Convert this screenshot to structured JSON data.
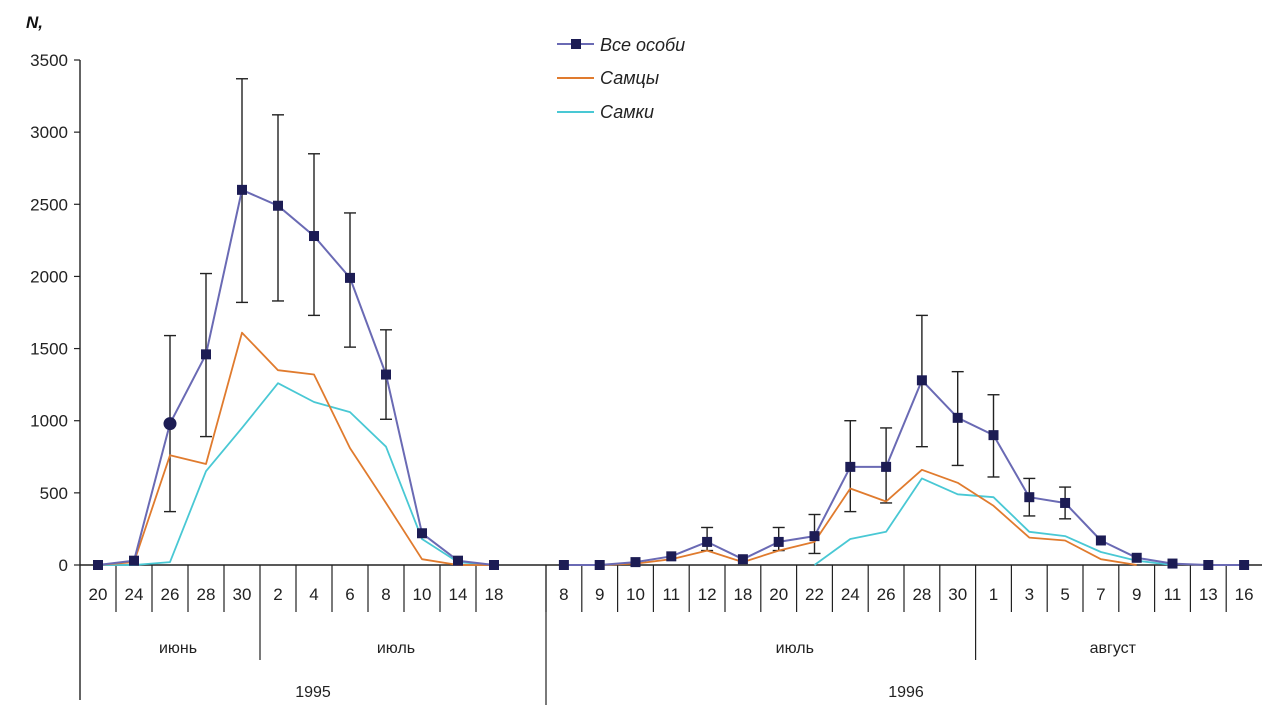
{
  "chart_data": {
    "type": "line",
    "ylabel": "N,",
    "ylim": [
      0,
      3500
    ],
    "yticks": [
      "0",
      "500",
      "1000",
      "1500",
      "2000",
      "2500",
      "3000",
      "3500"
    ],
    "yticks_values": [
      0,
      500,
      1000,
      1500,
      2000,
      2500,
      3000,
      3500
    ],
    "grid": false,
    "legend_position": "top-center",
    "colors": {
      "all": "#1c1c54",
      "all_line": "#6a6ab4",
      "males": "#e07b2e",
      "females": "#49c8d4",
      "error": "#222222"
    },
    "categories": [
      "20",
      "24",
      "26",
      "28",
      "30",
      "2",
      "4",
      "6",
      "8",
      "10",
      "14",
      "18",
      "8",
      "9",
      "10",
      "11",
      "12",
      "18",
      "20",
      "22",
      "24",
      "26",
      "28",
      "30",
      "1",
      "3",
      "5",
      "7",
      "9",
      "11",
      "13",
      "16"
    ],
    "months": [
      {
        "label": "июнь"
      },
      {
        "label": "июль"
      },
      {
        "label": "июль"
      },
      {
        "label": "август"
      }
    ],
    "years": [
      {
        "label": "1995"
      },
      {
        "label": "1996"
      }
    ],
    "series": [
      {
        "name": "Все особи",
        "key": "all",
        "values": [
          0,
          30,
          980,
          1460,
          2600,
          2490,
          2280,
          1990,
          1320,
          220,
          30,
          0,
          0,
          0,
          20,
          60,
          160,
          40,
          160,
          200,
          680,
          680,
          1280,
          1020,
          900,
          470,
          430,
          170,
          50,
          10,
          0,
          0
        ],
        "error_low": [
          null,
          null,
          370,
          890,
          1820,
          1830,
          1730,
          1510,
          1010,
          null,
          null,
          null,
          null,
          null,
          null,
          null,
          100,
          null,
          100,
          80,
          370,
          430,
          820,
          690,
          610,
          340,
          320,
          null,
          null,
          null,
          null,
          null
        ],
        "error_high": [
          null,
          null,
          1590,
          2020,
          3370,
          3120,
          2850,
          2440,
          1630,
          null,
          null,
          null,
          null,
          null,
          null,
          null,
          260,
          null,
          260,
          350,
          1000,
          950,
          1730,
          1340,
          1180,
          600,
          540,
          null,
          null,
          null,
          null,
          null
        ]
      },
      {
        "name": "Самцы",
        "key": "males",
        "values": [
          0,
          20,
          760,
          700,
          1610,
          1350,
          1320,
          810,
          430,
          40,
          0,
          0,
          null,
          0,
          10,
          40,
          100,
          20,
          100,
          160,
          530,
          440,
          660,
          570,
          410,
          190,
          170,
          40,
          0,
          null,
          null,
          null
        ]
      },
      {
        "name": "Самки",
        "key": "females",
        "values": [
          0,
          0,
          20,
          650,
          950,
          1260,
          1130,
          1060,
          820,
          180,
          20,
          0,
          null,
          null,
          null,
          null,
          null,
          null,
          null,
          0,
          180,
          230,
          600,
          490,
          470,
          230,
          200,
          90,
          30,
          0,
          null,
          null
        ]
      }
    ]
  }
}
